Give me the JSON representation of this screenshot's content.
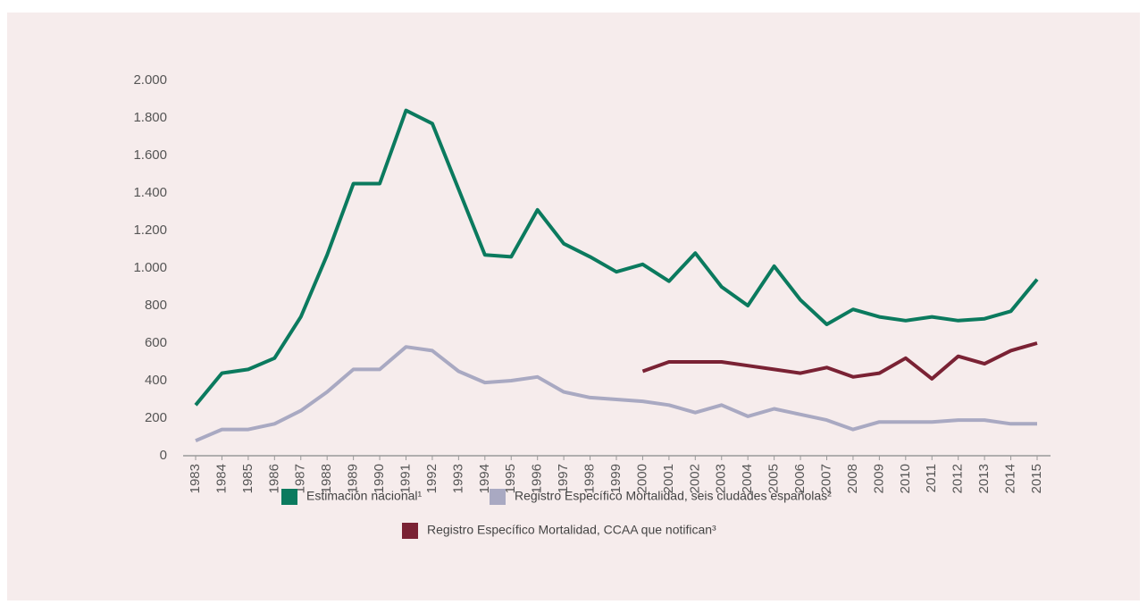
{
  "chart_data": {
    "type": "line",
    "categories": [
      "1983",
      "1984",
      "1985",
      "1986",
      "1987",
      "1988",
      "1989",
      "1990",
      "1991",
      "1992",
      "1993",
      "1994",
      "1995",
      "1996",
      "1997",
      "1998",
      "1999",
      "2000",
      "2001",
      "2002",
      "2003",
      "2004",
      "2005",
      "2006",
      "2007",
      "2008",
      "2009",
      "2010",
      "2011",
      "2012",
      "2013",
      "2014",
      "2015"
    ],
    "series": [
      {
        "name": "Estimación nacional¹",
        "color": "#0b7a5e",
        "values": [
          270,
          440,
          460,
          520,
          740,
          1070,
          1450,
          1450,
          1840,
          1770,
          1420,
          1070,
          1060,
          1310,
          1130,
          1060,
          980,
          1020,
          930,
          1080,
          900,
          800,
          1010,
          830,
          700,
          780,
          740,
          720,
          740,
          720,
          730,
          770,
          940
        ]
      },
      {
        "name": "Registro Específico Mortalidad, seis ciudades españolas²",
        "color": "#a9a9c2",
        "values": [
          80,
          140,
          140,
          170,
          240,
          340,
          460,
          460,
          580,
          560,
          450,
          390,
          400,
          420,
          340,
          310,
          300,
          290,
          270,
          230,
          270,
          210,
          250,
          220,
          190,
          140,
          180,
          180,
          180,
          190,
          190,
          170,
          170
        ]
      },
      {
        "name": "Registro Específico Mortalidad, CCAA que notifican³",
        "color": "#7a2234",
        "values": [
          null,
          null,
          null,
          null,
          null,
          null,
          null,
          null,
          null,
          null,
          null,
          null,
          null,
          null,
          null,
          null,
          null,
          450,
          500,
          500,
          500,
          480,
          460,
          440,
          470,
          420,
          440,
          520,
          410,
          530,
          490,
          560,
          600
        ]
      }
    ],
    "ylim": [
      0,
      2000
    ],
    "yticks": [
      0,
      200,
      400,
      600,
      800,
      {
        "value": 1000,
        "label": "1.000"
      },
      {
        "value": 1200,
        "label": "1.200"
      },
      {
        "value": 1400,
        "label": "1.400"
      },
      {
        "value": 1600,
        "label": "1.600"
      },
      {
        "value": 1800,
        "label": "1.800"
      },
      {
        "value": 2000,
        "label": "2.000"
      }
    ]
  }
}
